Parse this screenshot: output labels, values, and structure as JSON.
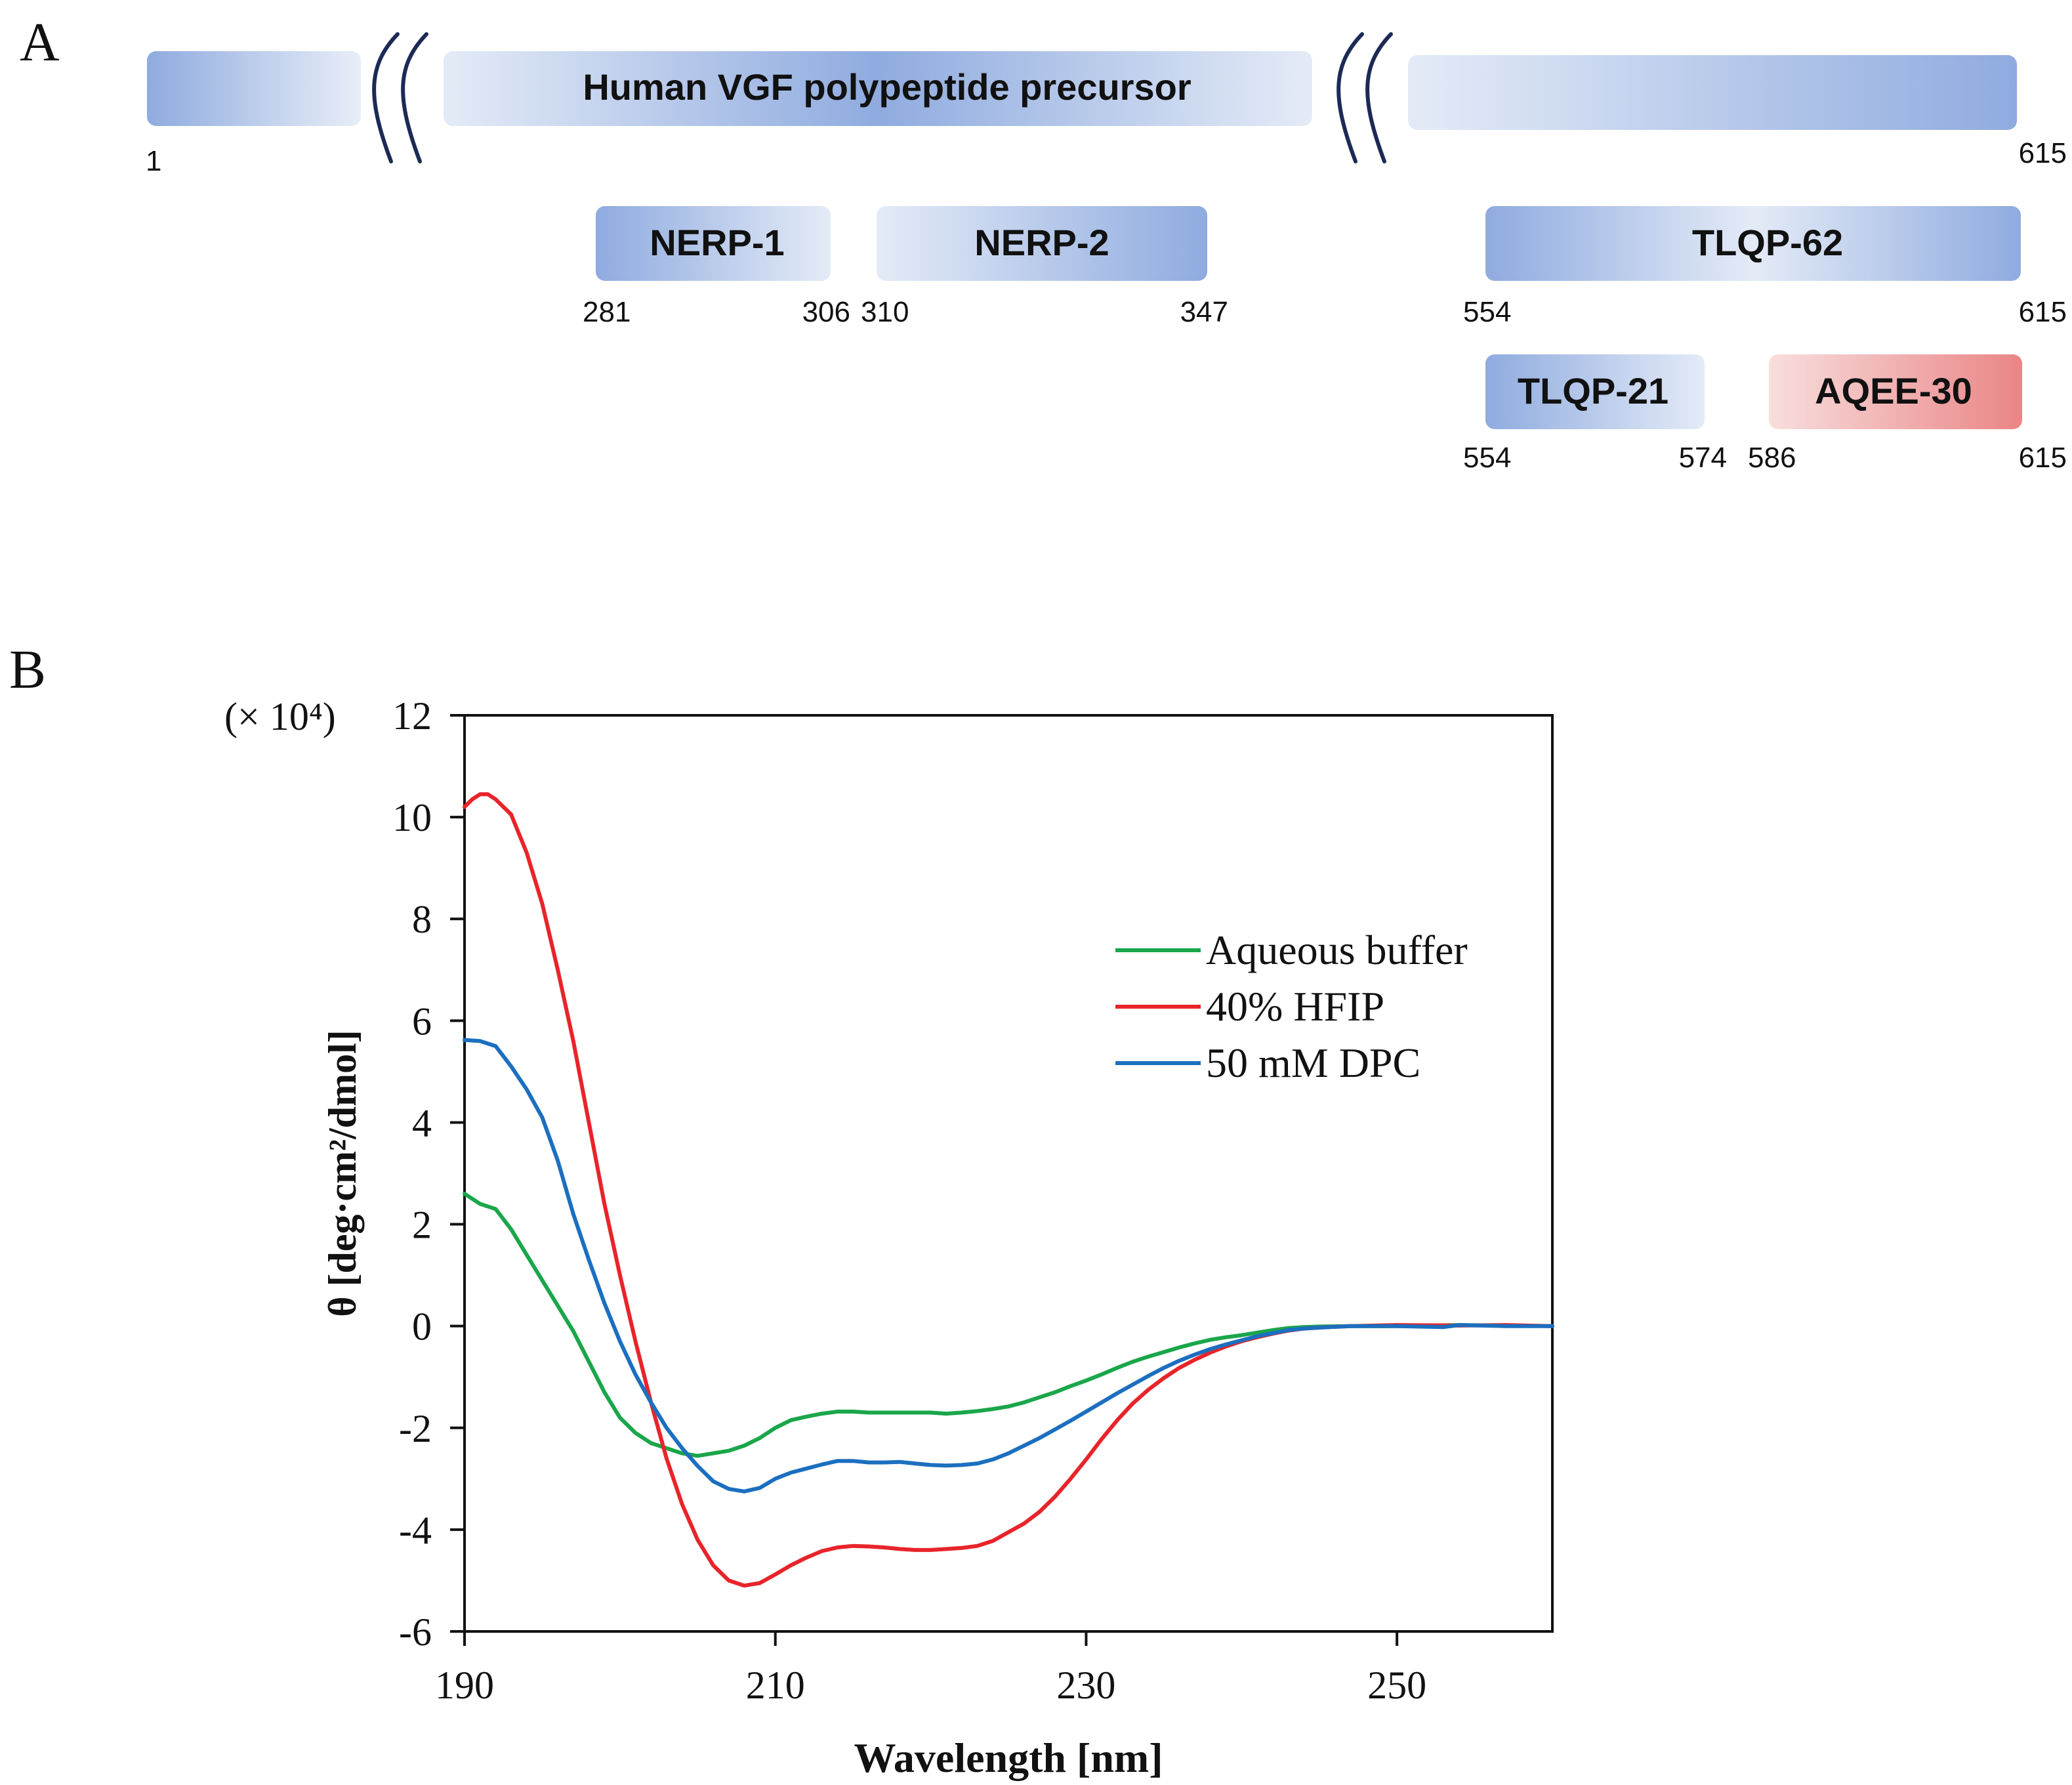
{
  "panel_a": {
    "label": "A",
    "precursor": {
      "title": "Human VGF polypeptide precursor",
      "start": "1",
      "end": "615"
    },
    "fragments": [
      {
        "name": "NERP-1",
        "start": "281",
        "end": "306",
        "gradient": "dark-light"
      },
      {
        "name": "NERP-2",
        "start": "310",
        "end": "347",
        "gradient": "light-dark"
      },
      {
        "name": "TLQP-62",
        "start": "554",
        "end": "615",
        "gradient": "dark-light-dark"
      },
      {
        "name": "TLQP-21",
        "start": "554",
        "end": "574",
        "gradient": "dark-light"
      },
      {
        "name": "AQEE-30",
        "start": "586",
        "end": "615",
        "gradient": "red-light-dark"
      }
    ],
    "colors": {
      "blue_dark": "#8fabdf",
      "blue_light": "#e4ebf7",
      "red_dark": "#ea8585",
      "red_light": "#f8dede",
      "break_mark": "#1c2a55"
    }
  },
  "panel_b": {
    "label": "B",
    "chart_data": {
      "type": "line",
      "title": "",
      "xlabel": "Wavelength [nm]",
      "ylabel": "θ [deg·cm²/dmol]",
      "y_multiplier": "(× 10⁴)",
      "xlim": [
        190,
        260
      ],
      "ylim": [
        -6,
        12
      ],
      "x_ticks": [
        "190",
        "210",
        "230",
        "250"
      ],
      "x_tick_values": [
        190,
        210,
        230,
        250
      ],
      "y_ticks": [
        "-6",
        "-4",
        "-2",
        "0",
        "2",
        "4",
        "6",
        "8",
        "10",
        "12"
      ],
      "y_tick_values": [
        -6,
        -4,
        -2,
        0,
        2,
        4,
        6,
        8,
        10,
        12
      ],
      "grid": false,
      "legend_position": "top-right",
      "series": [
        {
          "name": "Aqueous buffer",
          "color": "#1aa64a",
          "points": [
            [
              190,
              2.6
            ],
            [
              191,
              2.4
            ],
            [
              192,
              2.3
            ],
            [
              193,
              1.9
            ],
            [
              194,
              1.4
            ],
            [
              195,
              0.9
            ],
            [
              196,
              0.4
            ],
            [
              197,
              -0.1
            ],
            [
              198,
              -0.7
            ],
            [
              199,
              -1.3
            ],
            [
              200,
              -1.8
            ],
            [
              201,
              -2.1
            ],
            [
              202,
              -2.3
            ],
            [
              203,
              -2.4
            ],
            [
              204,
              -2.5
            ],
            [
              205,
              -2.55
            ],
            [
              206,
              -2.5
            ],
            [
              207,
              -2.45
            ],
            [
              208,
              -2.35
            ],
            [
              209,
              -2.2
            ],
            [
              210,
              -2.0
            ],
            [
              211,
              -1.85
            ],
            [
              212,
              -1.78
            ],
            [
              213,
              -1.72
            ],
            [
              214,
              -1.68
            ],
            [
              215,
              -1.68
            ],
            [
              216,
              -1.7
            ],
            [
              217,
              -1.7
            ],
            [
              218,
              -1.7
            ],
            [
              219,
              -1.7
            ],
            [
              220,
              -1.7
            ],
            [
              221,
              -1.72
            ],
            [
              222,
              -1.7
            ],
            [
              223,
              -1.67
            ],
            [
              224,
              -1.63
            ],
            [
              225,
              -1.58
            ],
            [
              226,
              -1.5
            ],
            [
              227,
              -1.4
            ],
            [
              228,
              -1.3
            ],
            [
              229,
              -1.18
            ],
            [
              230,
              -1.07
            ],
            [
              231,
              -0.95
            ],
            [
              232,
              -0.82
            ],
            [
              233,
              -0.7
            ],
            [
              234,
              -0.6
            ],
            [
              235,
              -0.51
            ],
            [
              236,
              -0.42
            ],
            [
              237,
              -0.34
            ],
            [
              238,
              -0.27
            ],
            [
              239,
              -0.22
            ],
            [
              240,
              -0.18
            ],
            [
              241,
              -0.13
            ],
            [
              242,
              -0.08
            ],
            [
              243,
              -0.04
            ],
            [
              244,
              -0.02
            ],
            [
              245,
              -0.01
            ],
            [
              247,
              0.0
            ],
            [
              250,
              0.0
            ],
            [
              254,
              0.02
            ],
            [
              257,
              0.01
            ],
            [
              260,
              0.0
            ]
          ]
        },
        {
          "name": "40% HFIP",
          "color": "#e8242a",
          "points": [
            [
              190,
              10.2
            ],
            [
              190.5,
              10.35
            ],
            [
              191,
              10.45
            ],
            [
              191.5,
              10.45
            ],
            [
              192,
              10.35
            ],
            [
              193,
              10.05
            ],
            [
              194,
              9.3
            ],
            [
              195,
              8.3
            ],
            [
              196,
              7.0
            ],
            [
              197,
              5.6
            ],
            [
              198,
              4.0
            ],
            [
              199,
              2.4
            ],
            [
              200,
              1.0
            ],
            [
              201,
              -0.3
            ],
            [
              202,
              -1.5
            ],
            [
              203,
              -2.6
            ],
            [
              204,
              -3.5
            ],
            [
              205,
              -4.2
            ],
            [
              206,
              -4.7
            ],
            [
              207,
              -5.0
            ],
            [
              208,
              -5.1
            ],
            [
              209,
              -5.05
            ],
            [
              210,
              -4.88
            ],
            [
              211,
              -4.7
            ],
            [
              212,
              -4.55
            ],
            [
              213,
              -4.42
            ],
            [
              214,
              -4.35
            ],
            [
              215,
              -4.32
            ],
            [
              216,
              -4.33
            ],
            [
              217,
              -4.35
            ],
            [
              218,
              -4.38
            ],
            [
              219,
              -4.4
            ],
            [
              220,
              -4.4
            ],
            [
              221,
              -4.38
            ],
            [
              222,
              -4.36
            ],
            [
              223,
              -4.32
            ],
            [
              224,
              -4.22
            ],
            [
              225,
              -4.05
            ],
            [
              226,
              -3.88
            ],
            [
              227,
              -3.65
            ],
            [
              228,
              -3.35
            ],
            [
              229,
              -3.0
            ],
            [
              230,
              -2.62
            ],
            [
              231,
              -2.22
            ],
            [
              232,
              -1.85
            ],
            [
              233,
              -1.52
            ],
            [
              234,
              -1.25
            ],
            [
              235,
              -1.02
            ],
            [
              236,
              -0.82
            ],
            [
              237,
              -0.66
            ],
            [
              238,
              -0.52
            ],
            [
              239,
              -0.4
            ],
            [
              240,
              -0.3
            ],
            [
              241,
              -0.22
            ],
            [
              242,
              -0.15
            ],
            [
              243,
              -0.09
            ],
            [
              244,
              -0.05
            ],
            [
              245,
              -0.03
            ],
            [
              247,
              0.0
            ],
            [
              250,
              0.02
            ],
            [
              254,
              0.01
            ],
            [
              257,
              0.02
            ],
            [
              260,
              0.0
            ]
          ]
        },
        {
          "name": "50 mM DPC",
          "color": "#1c6fbf",
          "points": [
            [
              190,
              5.62
            ],
            [
              191,
              5.6
            ],
            [
              192,
              5.5
            ],
            [
              193,
              5.1
            ],
            [
              194,
              4.65
            ],
            [
              195,
              4.1
            ],
            [
              196,
              3.25
            ],
            [
              197,
              2.2
            ],
            [
              198,
              1.3
            ],
            [
              199,
              0.45
            ],
            [
              200,
              -0.3
            ],
            [
              201,
              -0.95
            ],
            [
              202,
              -1.5
            ],
            [
              203,
              -2.0
            ],
            [
              204,
              -2.4
            ],
            [
              205,
              -2.75
            ],
            [
              206,
              -3.05
            ],
            [
              207,
              -3.2
            ],
            [
              208,
              -3.25
            ],
            [
              209,
              -3.18
            ],
            [
              210,
              -3.0
            ],
            [
              211,
              -2.88
            ],
            [
              212,
              -2.8
            ],
            [
              213,
              -2.72
            ],
            [
              214,
              -2.65
            ],
            [
              215,
              -2.65
            ],
            [
              216,
              -2.68
            ],
            [
              217,
              -2.68
            ],
            [
              218,
              -2.67
            ],
            [
              219,
              -2.7
            ],
            [
              220,
              -2.73
            ],
            [
              221,
              -2.74
            ],
            [
              222,
              -2.73
            ],
            [
              223,
              -2.7
            ],
            [
              224,
              -2.62
            ],
            [
              225,
              -2.5
            ],
            [
              226,
              -2.35
            ],
            [
              227,
              -2.2
            ],
            [
              228,
              -2.03
            ],
            [
              229,
              -1.86
            ],
            [
              230,
              -1.68
            ],
            [
              231,
              -1.5
            ],
            [
              232,
              -1.32
            ],
            [
              233,
              -1.15
            ],
            [
              234,
              -0.98
            ],
            [
              235,
              -0.82
            ],
            [
              236,
              -0.68
            ],
            [
              237,
              -0.56
            ],
            [
              238,
              -0.45
            ],
            [
              239,
              -0.36
            ],
            [
              240,
              -0.28
            ],
            [
              241,
              -0.2
            ],
            [
              242,
              -0.14
            ],
            [
              243,
              -0.08
            ],
            [
              244,
              -0.05
            ],
            [
              245,
              -0.03
            ],
            [
              247,
              0.0
            ],
            [
              250,
              0.0
            ],
            [
              253,
              -0.02
            ],
            [
              254,
              0.02
            ],
            [
              257,
              0.0
            ],
            [
              260,
              0.0
            ]
          ]
        }
      ]
    }
  }
}
